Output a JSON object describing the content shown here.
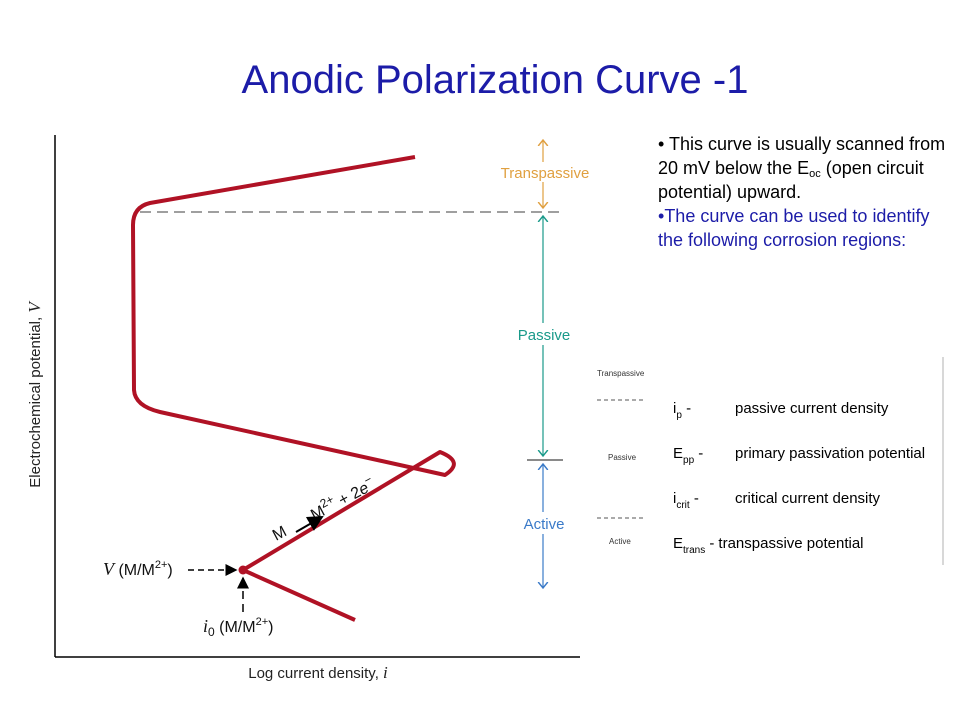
{
  "title": "Anodic Polarization Curve -1",
  "bullets": [
    {
      "parts": [
        "This curve is usually scanned from 20 mV below the E",
        "oc",
        " (open circuit potential) upward."
      ]
    },
    {
      "text": "The curve can be used to identify the following corrosion regions:"
    }
  ],
  "diagram": {
    "y_axis_label": [
      "Electrochemical potential, ",
      "V"
    ],
    "x_axis_label": [
      "Log current density, ",
      "i"
    ],
    "regions": [
      "Transpassive",
      "Passive",
      "Active"
    ],
    "reaction": [
      "M",
      "M",
      "2+",
      " + 2",
      "e",
      "−"
    ],
    "v_label": [
      "V",
      " (M/M",
      "2+",
      ")"
    ],
    "i0_label": [
      "i",
      "0",
      " (M/M",
      "2+",
      ")"
    ]
  },
  "inset": {
    "regions": [
      "Transpassive",
      "Passive",
      "Active"
    ]
  },
  "legend": {
    "rows": [
      {
        "symbol": "i",
        "sub": "p",
        "dash": " -",
        "description": "passive current density"
      },
      {
        "symbol": "E",
        "sub": "pp",
        "dash": " -",
        "description": "primary passivation potential"
      },
      {
        "symbol": "i",
        "sub": "crit",
        "dash": " -",
        "description": "critical current density"
      },
      {
        "symbol": "E",
        "sub": "trans",
        "dash": " -",
        "description": "transpassive potential"
      }
    ]
  }
}
